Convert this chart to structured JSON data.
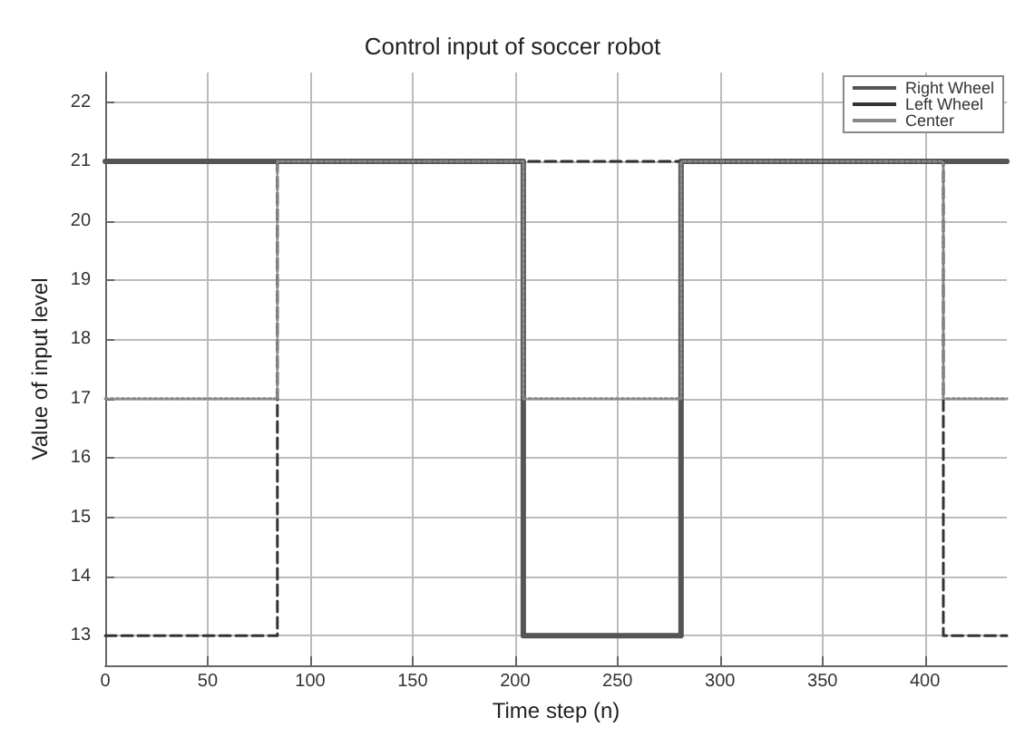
{
  "chart_data": {
    "type": "line",
    "title": "Control input of soccer robot",
    "xlabel": "Time step (n)",
    "ylabel": "Value of input level",
    "xlim": [
      0,
      440
    ],
    "xticks": [
      0,
      50,
      100,
      150,
      200,
      250,
      300,
      350,
      400
    ],
    "ylim": [
      12.5,
      22.5
    ],
    "yticks": [
      13,
      14,
      15,
      16,
      17,
      18,
      19,
      20,
      21,
      22
    ],
    "grid": true,
    "legend": "top right",
    "series": [
      {
        "name": "Right Wheel",
        "color": "#555555",
        "line_style": "solid",
        "x": [
          0,
          204,
          204,
          281,
          281,
          440
        ],
        "values": [
          21,
          21,
          13,
          13,
          21,
          21
        ]
      },
      {
        "name": "Left Wheel",
        "color": "#333333",
        "line_style": "dashed",
        "x": [
          0,
          84,
          84,
          409,
          409,
          440
        ],
        "values": [
          13,
          13,
          21,
          21,
          13,
          13
        ]
      },
      {
        "name": "Center",
        "color": "#888888",
        "line_style": "dotted",
        "x": [
          0,
          84,
          84,
          204,
          204,
          281,
          281,
          409,
          409,
          440
        ],
        "values": [
          17,
          17,
          21,
          21,
          17,
          17,
          21,
          21,
          17,
          17
        ]
      }
    ]
  }
}
